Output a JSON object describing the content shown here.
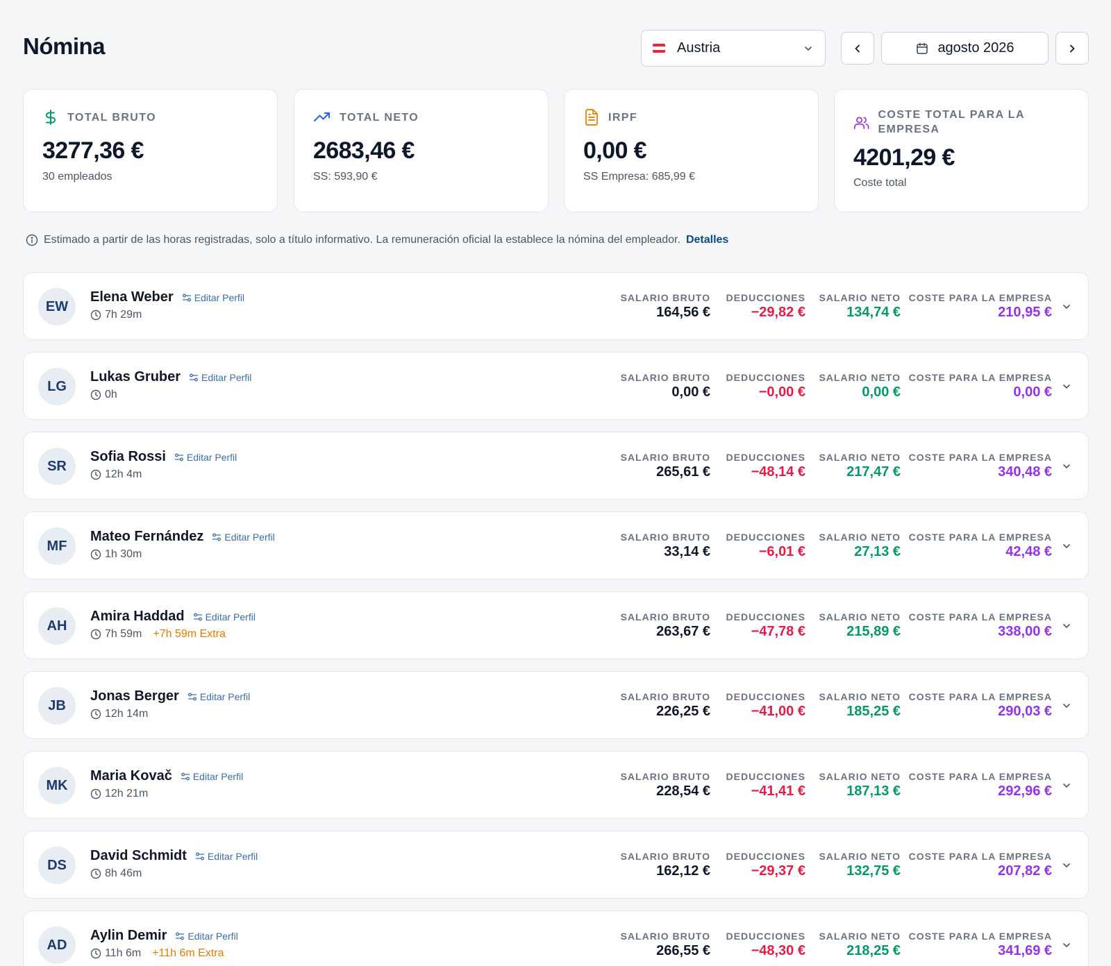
{
  "header": {
    "title": "Nómina",
    "country": "Austria",
    "month": "agosto 2026"
  },
  "colors": {
    "gross": "#111827",
    "deductions": "#e11d48",
    "net": "#059669",
    "company_cost": "#9333ea",
    "extra": "#e07b00"
  },
  "summary": [
    {
      "label": "TOTAL BRUTO",
      "value": "3277,36 €",
      "sub": "30 empleados",
      "icon": "dollar-icon"
    },
    {
      "label": "TOTAL NETO",
      "value": "2683,46 €",
      "sub": "SS: 593,90 €",
      "icon": "trending-up-icon"
    },
    {
      "label": "IRPF",
      "value": "0,00 €",
      "sub": "SS Empresa: 685,99 €",
      "icon": "document-icon"
    },
    {
      "label": "COSTE TOTAL PARA LA EMPRESA",
      "value": "4201,29 €",
      "sub": "Coste total",
      "icon": "users-icon"
    }
  ],
  "note": {
    "text": "Estimado a partir de las horas registradas, solo a título informativo. La remuneración oficial la establece la nómina del empleador.",
    "link": "Detalles"
  },
  "columns": {
    "gross": "SALARIO BRUTO",
    "deductions": "DEDUCCIONES",
    "net": "SALARIO NETO",
    "cost": "COSTE PARA LA EMPRESA"
  },
  "edit_label": "Editar Perfil",
  "employees": [
    {
      "initials": "EW",
      "name": "Elena Weber",
      "hours": "7h 29m",
      "extra": "",
      "gross": "164,56 €",
      "deductions": "−29,82 €",
      "net": "134,74 €",
      "cost": "210,95 €"
    },
    {
      "initials": "LG",
      "name": "Lukas Gruber",
      "hours": "0h",
      "extra": "",
      "gross": "0,00 €",
      "deductions": "−0,00 €",
      "net": "0,00 €",
      "cost": "0,00 €"
    },
    {
      "initials": "SR",
      "name": "Sofia Rossi",
      "hours": "12h 4m",
      "extra": "",
      "gross": "265,61 €",
      "deductions": "−48,14 €",
      "net": "217,47 €",
      "cost": "340,48 €"
    },
    {
      "initials": "MF",
      "name": "Mateo Fernández",
      "hours": "1h 30m",
      "extra": "",
      "gross": "33,14 €",
      "deductions": "−6,01 €",
      "net": "27,13 €",
      "cost": "42,48 €"
    },
    {
      "initials": "AH",
      "name": "Amira Haddad",
      "hours": "7h 59m",
      "extra": "+7h 59m Extra",
      "gross": "263,67 €",
      "deductions": "−47,78 €",
      "net": "215,89 €",
      "cost": "338,00 €"
    },
    {
      "initials": "JB",
      "name": "Jonas Berger",
      "hours": "12h 14m",
      "extra": "",
      "gross": "226,25 €",
      "deductions": "−41,00 €",
      "net": "185,25 €",
      "cost": "290,03 €"
    },
    {
      "initials": "MK",
      "name": "Maria Kovač",
      "hours": "12h 21m",
      "extra": "",
      "gross": "228,54 €",
      "deductions": "−41,41 €",
      "net": "187,13 €",
      "cost": "292,96 €"
    },
    {
      "initials": "DS",
      "name": "David Schmidt",
      "hours": "8h 46m",
      "extra": "",
      "gross": "162,12 €",
      "deductions": "−29,37 €",
      "net": "132,75 €",
      "cost": "207,82 €"
    },
    {
      "initials": "AD",
      "name": "Aylin Demir",
      "hours": "11h 6m",
      "extra": "+11h 6m Extra",
      "gross": "266,55 €",
      "deductions": "−48,30 €",
      "net": "218,25 €",
      "cost": "341,69 €"
    }
  ]
}
